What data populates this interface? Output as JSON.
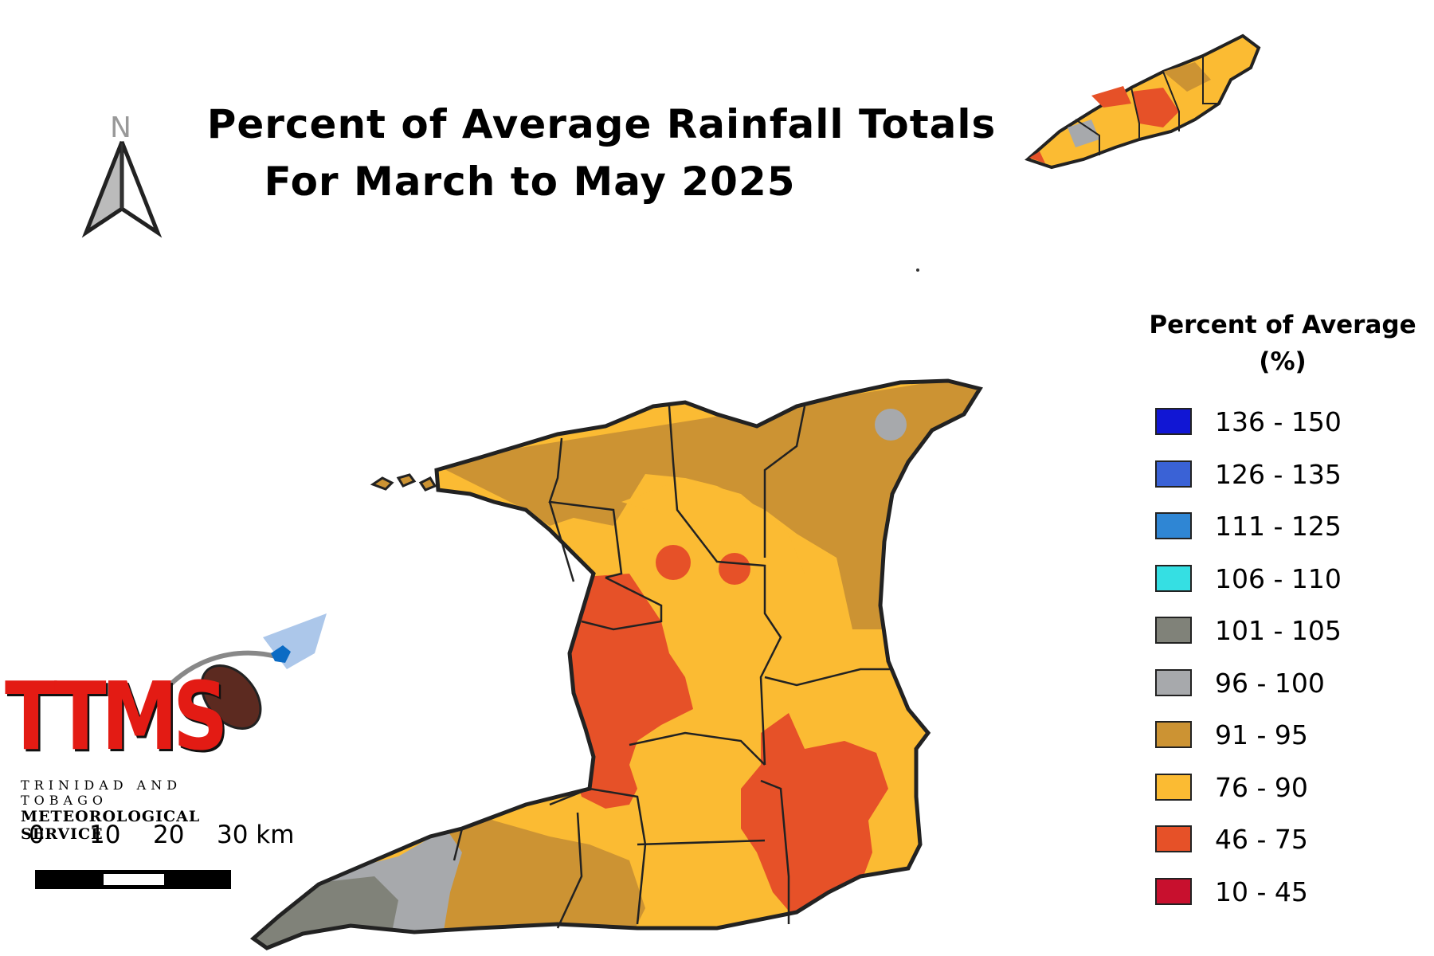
{
  "title": {
    "line1": "Percent of Average Rainfall Totals",
    "line2": "For March to May 2025"
  },
  "north_arrow": {
    "letter": "N"
  },
  "legend": {
    "title_line1": "Percent of Average",
    "title_line2": "(%)",
    "items": [
      {
        "label": "136 - 150",
        "color": "#1116d4"
      },
      {
        "label": "126 - 135",
        "color": "#3a62d6"
      },
      {
        "label": "111 - 125",
        "color": "#2f86d4"
      },
      {
        "label": "106 - 110",
        "color": "#35dfe3"
      },
      {
        "label": "101 - 105",
        "color": "#808279"
      },
      {
        "label": "96 - 100",
        "color": "#a7a9ac"
      },
      {
        "label": "91 - 95",
        "color": "#cc9333"
      },
      {
        "label": "76 - 90",
        "color": "#fbbb33"
      },
      {
        "label": "46 - 75",
        "color": "#e65128"
      },
      {
        "label": "10 - 45",
        "color": "#c8102e"
      }
    ]
  },
  "scale_bar": {
    "labels": [
      "0",
      "10",
      "20",
      "30 km"
    ]
  },
  "logo": {
    "wordmark": "TTMS",
    "line1": "TRINIDAD AND TOBAGO",
    "line2": "METEOROLOGICAL SERVICE"
  },
  "colors": {
    "coastline": "#222222",
    "region_border": "#222222"
  }
}
